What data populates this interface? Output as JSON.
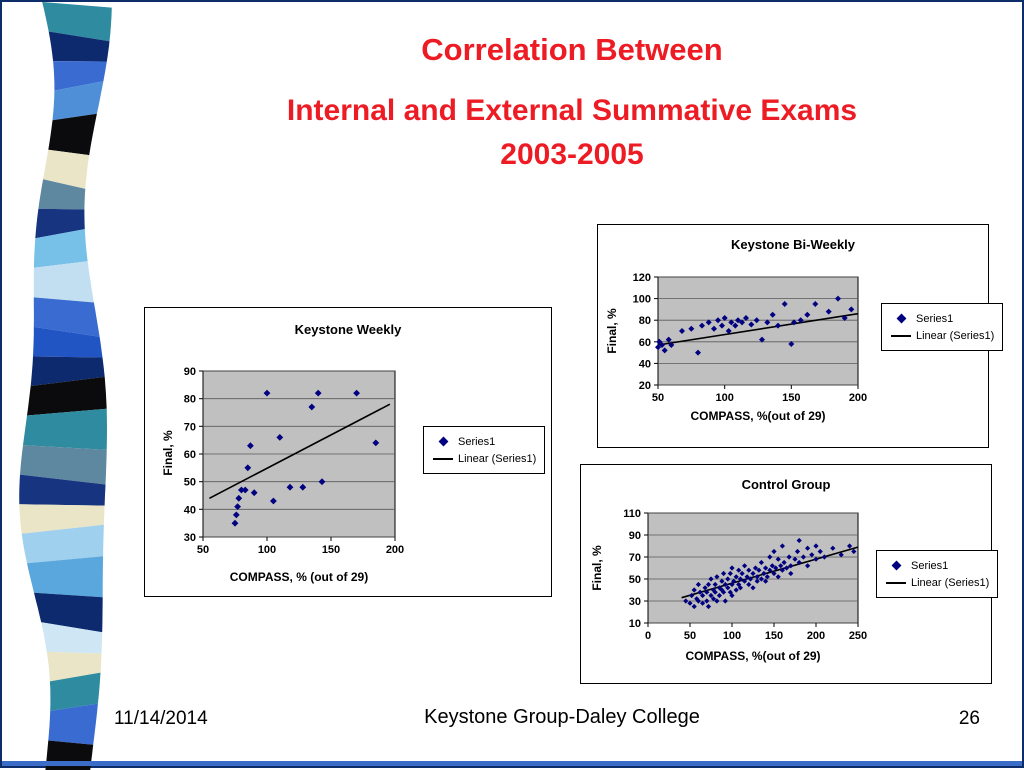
{
  "slide": {
    "title_line1": "Correlation Between",
    "title_line2": "Internal and External Summative Exams",
    "title_line3": "2003-2005",
    "title_color": "#ed1c24",
    "footer": {
      "date": "11/14/2014",
      "credit": "Keystone Group-Daley College",
      "page_number": "26"
    }
  },
  "decor": {
    "border_color": "#0c2d69",
    "accent_bar_color": "#3a6cc8",
    "ribbon_colors": [
      "#2e8ba0",
      "#0d2a6e",
      "#3a6bd0",
      "#4f8fd8",
      "#0b0b0d",
      "#e9e5c6",
      "#5e87a0",
      "#16347f",
      "#77c0e8",
      "#c2def1",
      "#3a6bd0",
      "#2255c4",
      "#0d2a6e",
      "#0b0b0d",
      "#2e8ba0",
      "#5e87a0",
      "#16347f",
      "#e9e5c6",
      "#9fd0ee",
      "#5aa7dd",
      "#0d2a6e",
      "#cfe6f4",
      "#e9e5c6",
      "#2e8ba0",
      "#3a6bd0",
      "#0b0b0d"
    ]
  },
  "chart_data": [
    {
      "type": "scatter",
      "title": "Keystone Weekly",
      "xlabel": "COMPASS, % (out of 29)",
      "ylabel": "Final, %",
      "xlim": [
        50,
        200
      ],
      "ylim": [
        30,
        90
      ],
      "xticks": [
        50,
        100,
        150,
        200
      ],
      "yticks": [
        30,
        40,
        50,
        60,
        70,
        80,
        90
      ],
      "legend": [
        "Series1",
        "Linear (Series1)"
      ],
      "legend_position": "right",
      "grid": "horizontal",
      "plot_bg": "#c0c0c0",
      "marker_color": "#000080",
      "trendline_color": "#000000",
      "trendline": {
        "x": [
          55,
          196
        ],
        "y": [
          44,
          78
        ]
      },
      "points": [
        [
          75,
          35
        ],
        [
          76,
          38
        ],
        [
          77,
          41
        ],
        [
          78,
          44
        ],
        [
          80,
          47
        ],
        [
          83,
          47
        ],
        [
          85,
          55
        ],
        [
          87,
          63
        ],
        [
          90,
          46
        ],
        [
          100,
          82
        ],
        [
          105,
          43
        ],
        [
          110,
          66
        ],
        [
          118,
          48
        ],
        [
          128,
          48
        ],
        [
          135,
          77
        ],
        [
          140,
          82
        ],
        [
          143,
          50
        ],
        [
          170,
          82
        ],
        [
          185,
          64
        ]
      ]
    },
    {
      "type": "scatter",
      "title": "Keystone Bi-Weekly",
      "xlabel": "COMPASS, %(out of 29)",
      "ylabel": "Final, %",
      "xlim": [
        50,
        200
      ],
      "ylim": [
        20,
        120
      ],
      "xticks": [
        50,
        100,
        150,
        200
      ],
      "yticks": [
        20,
        40,
        60,
        80,
        100,
        120
      ],
      "legend": [
        "Series1",
        "Linear (Series1)"
      ],
      "legend_position": "right",
      "grid": "horizontal",
      "plot_bg": "#c0c0c0",
      "marker_color": "#000080",
      "trendline_color": "#000000",
      "trendline": {
        "x": [
          50,
          200
        ],
        "y": [
          57,
          86
        ]
      },
      "points": [
        [
          50,
          55
        ],
        [
          51,
          60
        ],
        [
          53,
          57
        ],
        [
          55,
          52
        ],
        [
          58,
          62
        ],
        [
          60,
          57
        ],
        [
          68,
          70
        ],
        [
          75,
          72
        ],
        [
          80,
          50
        ],
        [
          83,
          75
        ],
        [
          88,
          78
        ],
        [
          92,
          72
        ],
        [
          95,
          80
        ],
        [
          98,
          75
        ],
        [
          100,
          82
        ],
        [
          103,
          70
        ],
        [
          105,
          78
        ],
        [
          108,
          75
        ],
        [
          110,
          80
        ],
        [
          113,
          78
        ],
        [
          116,
          82
        ],
        [
          120,
          76
        ],
        [
          124,
          80
        ],
        [
          128,
          62
        ],
        [
          132,
          78
        ],
        [
          136,
          85
        ],
        [
          140,
          75
        ],
        [
          145,
          95
        ],
        [
          150,
          58
        ],
        [
          152,
          78
        ],
        [
          157,
          80
        ],
        [
          162,
          85
        ],
        [
          168,
          95
        ],
        [
          178,
          88
        ],
        [
          185,
          100
        ],
        [
          190,
          82
        ],
        [
          195,
          90
        ]
      ]
    },
    {
      "type": "scatter",
      "title": "Control Group",
      "xlabel": "COMPASS, %(out of 29)",
      "ylabel": "Final, %",
      "xlim": [
        0,
        250
      ],
      "ylim": [
        10,
        110
      ],
      "xticks": [
        0,
        50,
        100,
        150,
        200,
        250
      ],
      "yticks": [
        10,
        30,
        50,
        70,
        90,
        110
      ],
      "legend": [
        "Series1",
        "Linear (Series1)"
      ],
      "legend_position": "right",
      "grid": "horizontal",
      "plot_bg": "#c0c0c0",
      "marker_color": "#000080",
      "trendline_color": "#000000",
      "trendline": {
        "x": [
          40,
          250
        ],
        "y": [
          33,
          79
        ]
      },
      "points": [
        [
          45,
          30
        ],
        [
          50,
          28
        ],
        [
          52,
          35
        ],
        [
          55,
          25
        ],
        [
          55,
          40
        ],
        [
          58,
          32
        ],
        [
          60,
          30
        ],
        [
          60,
          45
        ],
        [
          62,
          38
        ],
        [
          65,
          28
        ],
        [
          65,
          35
        ],
        [
          68,
          42
        ],
        [
          70,
          30
        ],
        [
          70,
          38
        ],
        [
          72,
          45
        ],
        [
          72,
          25
        ],
        [
          75,
          35
        ],
        [
          75,
          50
        ],
        [
          78,
          40
        ],
        [
          78,
          32
        ],
        [
          80,
          45
        ],
        [
          80,
          38
        ],
        [
          82,
          30
        ],
        [
          82,
          52
        ],
        [
          85,
          42
        ],
        [
          85,
          35
        ],
        [
          88,
          48
        ],
        [
          88,
          40
        ],
        [
          90,
          38
        ],
        [
          90,
          55
        ],
        [
          92,
          45
        ],
        [
          92,
          30
        ],
        [
          95,
          50
        ],
        [
          95,
          42
        ],
        [
          98,
          38
        ],
        [
          98,
          55
        ],
        [
          100,
          45
        ],
        [
          100,
          60
        ],
        [
          100,
          35
        ],
        [
          102,
          48
        ],
        [
          105,
          52
        ],
        [
          105,
          40
        ],
        [
          108,
          45
        ],
        [
          108,
          58
        ],
        [
          110,
          50
        ],
        [
          110,
          42
        ],
        [
          112,
          55
        ],
        [
          115,
          48
        ],
        [
          115,
          62
        ],
        [
          118,
          52
        ],
        [
          120,
          45
        ],
        [
          120,
          58
        ],
        [
          122,
          50
        ],
        [
          125,
          55
        ],
        [
          125,
          42
        ],
        [
          128,
          60
        ],
        [
          130,
          52
        ],
        [
          130,
          48
        ],
        [
          132,
          58
        ],
        [
          135,
          50
        ],
        [
          135,
          65
        ],
        [
          138,
          55
        ],
        [
          140,
          60
        ],
        [
          140,
          48
        ],
        [
          142,
          52
        ],
        [
          145,
          58
        ],
        [
          145,
          70
        ],
        [
          148,
          62
        ],
        [
          150,
          55
        ],
        [
          150,
          75
        ],
        [
          152,
          60
        ],
        [
          155,
          52
        ],
        [
          155,
          68
        ],
        [
          158,
          62
        ],
        [
          160,
          58
        ],
        [
          160,
          80
        ],
        [
          162,
          65
        ],
        [
          165,
          60
        ],
        [
          168,
          70
        ],
        [
          170,
          62
        ],
        [
          170,
          55
        ],
        [
          175,
          68
        ],
        [
          178,
          75
        ],
        [
          180,
          65
        ],
        [
          180,
          85
        ],
        [
          185,
          70
        ],
        [
          190,
          78
        ],
        [
          190,
          62
        ],
        [
          195,
          72
        ],
        [
          200,
          68
        ],
        [
          200,
          80
        ],
        [
          205,
          75
        ],
        [
          210,
          70
        ],
        [
          220,
          78
        ],
        [
          230,
          72
        ],
        [
          240,
          80
        ],
        [
          245,
          75
        ]
      ]
    }
  ]
}
